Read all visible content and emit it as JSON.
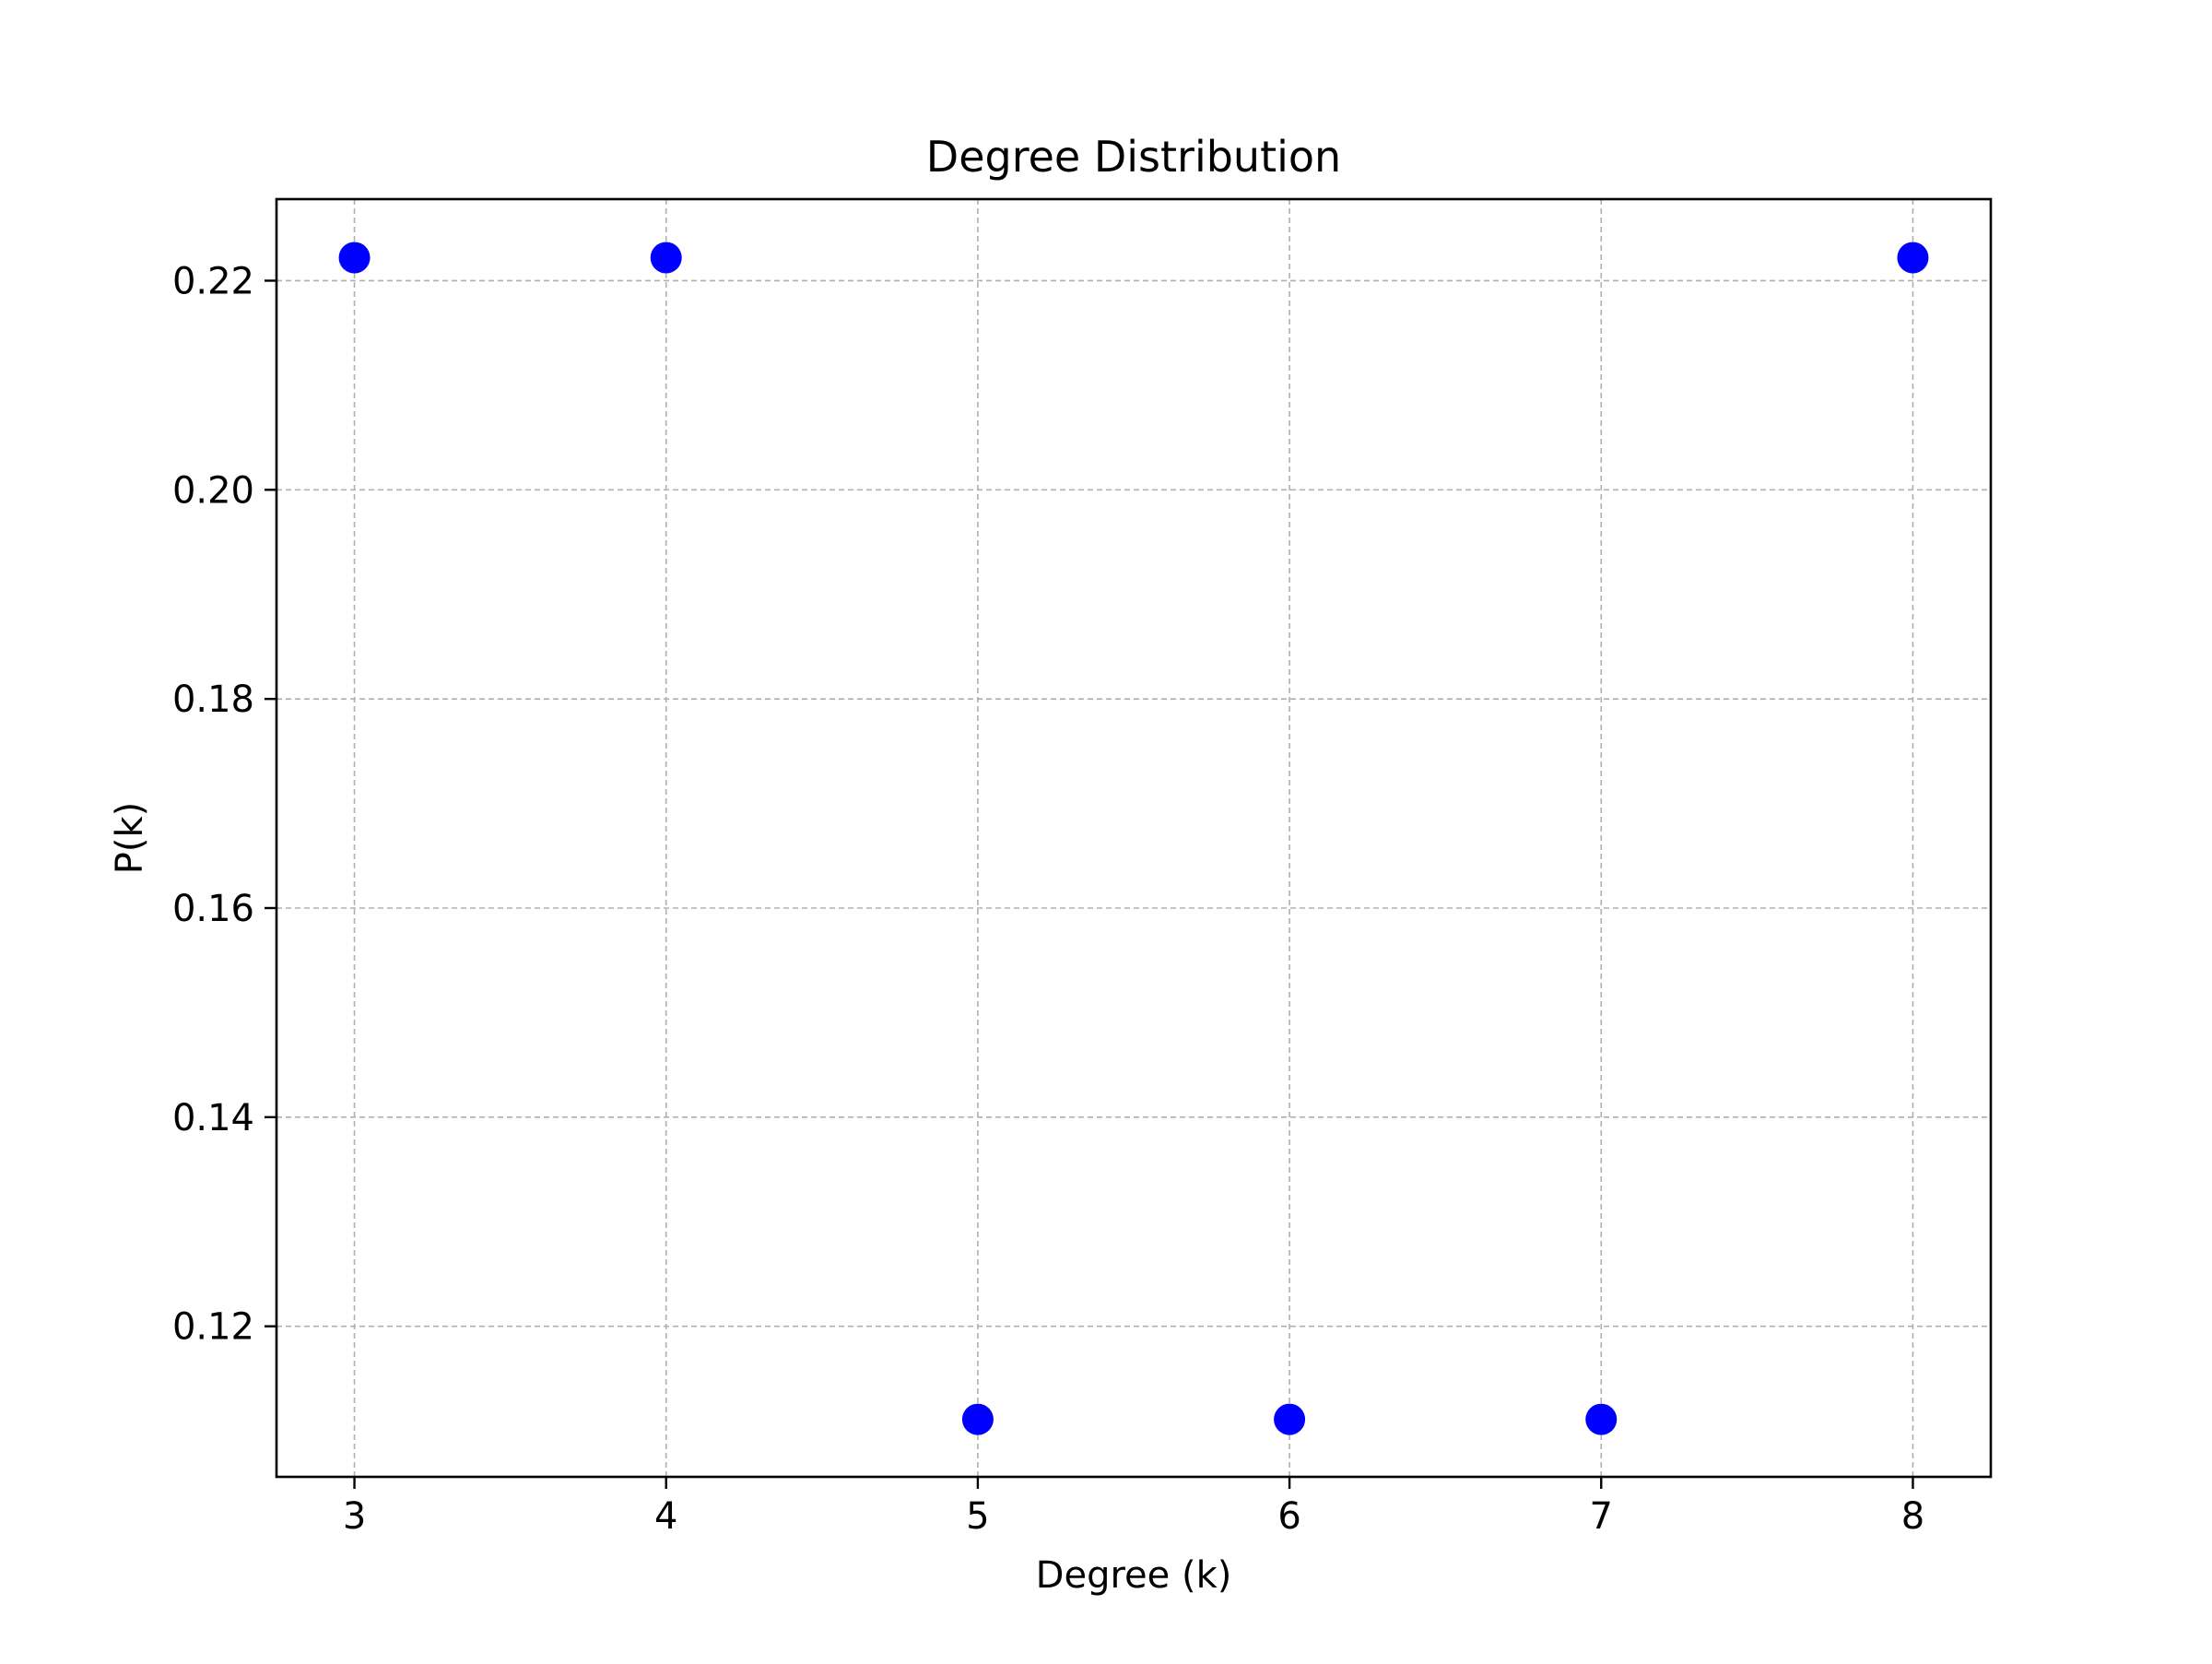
{
  "chart_data": {
    "type": "scatter",
    "title": "Degree Distribution",
    "xlabel": "Degree (k)",
    "ylabel": "P(k)",
    "x": [
      3,
      4,
      5,
      6,
      7,
      8
    ],
    "y": [
      0.2222,
      0.2222,
      0.1111,
      0.1111,
      0.1111,
      0.2222
    ],
    "xlim": [
      2.75,
      8.25
    ],
    "ylim": [
      0.1056,
      0.2278
    ],
    "xticks": [
      3,
      4,
      5,
      6,
      7,
      8
    ],
    "xtick_labels": [
      "3",
      "4",
      "5",
      "6",
      "7",
      "8"
    ],
    "yticks": [
      0.12,
      0.14,
      0.16,
      0.18,
      0.2,
      0.22
    ],
    "ytick_labels": [
      "0.12",
      "0.14",
      "0.16",
      "0.18",
      "0.20",
      "0.22"
    ],
    "grid": true,
    "legend": "none",
    "colors": {
      "marker": "#0000ff",
      "grid": "#b0b0b0",
      "axes": "#000000"
    }
  }
}
